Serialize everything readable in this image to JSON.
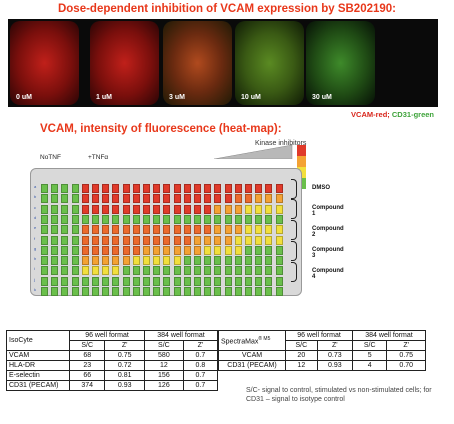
{
  "title_micrographs": "Dose-dependent inhibition of VCAM expression by SB202190:",
  "micrographs": [
    {
      "label": "0 uM",
      "tone": "red"
    },
    {
      "label": "1 uM",
      "tone": "red"
    },
    {
      "label": "3 uM",
      "tone": "mixed"
    },
    {
      "label": "10 uM",
      "tone": "mostly-green"
    },
    {
      "label": "30 uM",
      "tone": "green"
    }
  ],
  "micro_legend": {
    "red_text": "VCAM-red;",
    "green_text": "CD31-green"
  },
  "title_heatmap": "VCAM, intensity of fluorescence (heat-map):",
  "heatmap": {
    "notnf_label": "NoTNF",
    "tnfa_label": "+TNFα",
    "kinase_label": "Kinase inhibitors",
    "row_letters": [
      "a",
      "b",
      "c",
      "d",
      "e",
      "f",
      "g",
      "h",
      "i",
      "j",
      "k"
    ],
    "groups": [
      "DMSO",
      "Compound 1",
      "Compound 2",
      "Compound 3",
      "Compound 4"
    ],
    "colors": {
      "green": "#6abf4b",
      "yellow": "#f2df3c",
      "orange": "#f4a233",
      "redorange": "#ec6a2c",
      "red": "#e03a2a"
    }
  },
  "table1": {
    "headers": [
      "IsoCyte",
      "96 well format",
      "384 well format"
    ],
    "subheaders": [
      "S/C",
      "Z'",
      "S/C",
      "Z'"
    ],
    "rows": [
      {
        "name": "VCAM",
        "v": [
          "68",
          "0.75",
          "580",
          "0.7"
        ]
      },
      {
        "name": "HLA-DR",
        "v": [
          "23",
          "0.72",
          "12",
          "0.8"
        ]
      },
      {
        "name": "E-selectin",
        "v": [
          "66",
          "0.81",
          "156",
          "0.7"
        ]
      },
      {
        "name": "CD31 (PECAM)",
        "v": [
          "374",
          "0.93",
          "126",
          "0.7"
        ]
      }
    ]
  },
  "table2": {
    "headers": [
      "SpectraMax",
      "® M5",
      "96 well format",
      "384 well format"
    ],
    "subheaders": [
      "S/C",
      "Z'",
      "S/C",
      "Z'"
    ],
    "rows": [
      {
        "name": "VCAM",
        "v": [
          "20",
          "0.73",
          "5",
          "0.75"
        ]
      },
      {
        "name": "CD31 (PECAM)",
        "v": [
          "12",
          "0.93",
          "4",
          "0.70"
        ]
      }
    ]
  },
  "note": "S/C- signal to control, stimulated vs non-stimulated cells; for CD31 – signal to isotype control"
}
